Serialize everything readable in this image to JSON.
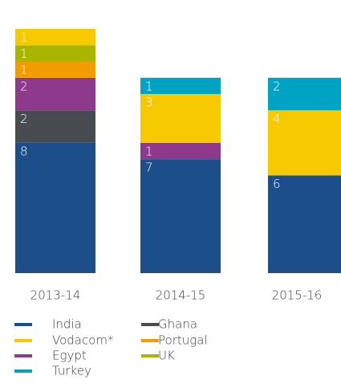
{
  "chart_data": {
    "type": "stacked_bar",
    "categories": [
      "2013-14",
      "2014-15",
      "2015-16"
    ],
    "series": [
      {
        "name": "India",
        "color": "#1c4f8a",
        "values": [
          8,
          7,
          6
        ]
      },
      {
        "name": "Ghana",
        "color": "#484c51",
        "values": [
          2,
          null,
          null
        ]
      },
      {
        "name": "Egypt",
        "color": "#8e3a8c",
        "values": [
          2,
          1,
          null
        ]
      },
      {
        "name": "Portugal",
        "color": "#f39c00",
        "values": [
          1,
          null,
          null
        ]
      },
      {
        "name": "UK",
        "color": "#a9b500",
        "values": [
          1,
          null,
          null
        ]
      },
      {
        "name": "Vodacom*",
        "color": "#f7c900",
        "values": [
          1,
          3,
          4
        ]
      },
      {
        "name": "Turkey",
        "color": "#00a4c3",
        "values": [
          null,
          1,
          2
        ]
      }
    ],
    "ylim": [
      0,
      15
    ]
  }
}
